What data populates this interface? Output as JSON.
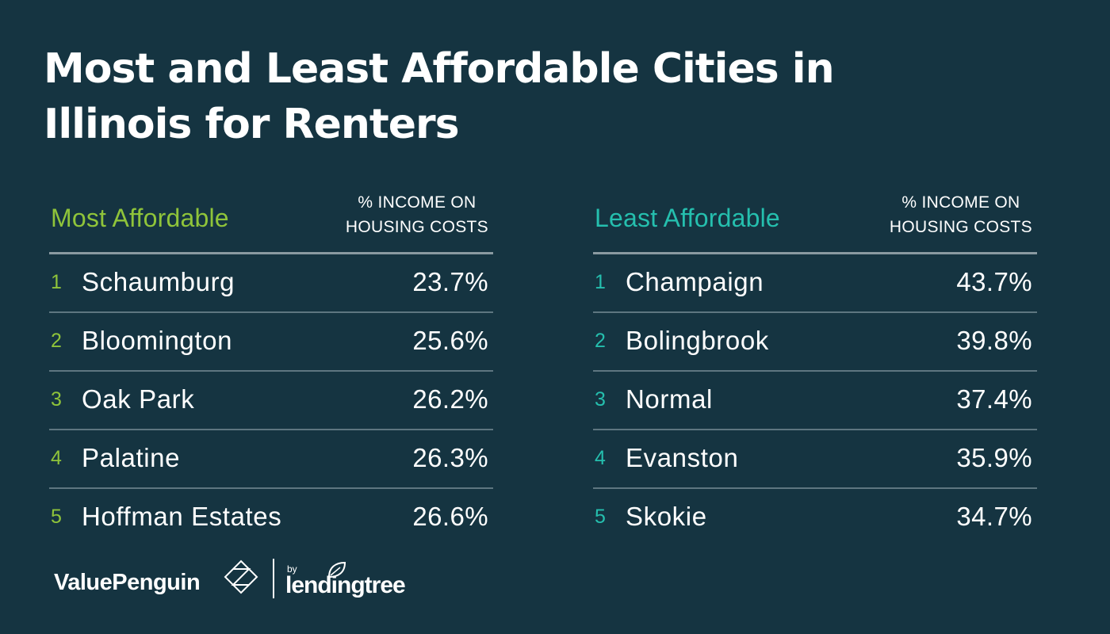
{
  "title": "Most and Least Affordable Cities in Illinois for Renters",
  "chart_data": {
    "type": "table",
    "title": "Most and Least Affordable Cities in Illinois for Renters",
    "tables": [
      {
        "label": "Most Affordable",
        "column_header_line1": "% INCOME ON",
        "column_header_line2": "HOUSING COSTS",
        "color": "#8fc43a",
        "rows": [
          {
            "rank": "1",
            "city": "Schaumburg",
            "value": "23.7%"
          },
          {
            "rank": "2",
            "city": "Bloomington",
            "value": "25.6%"
          },
          {
            "rank": "3",
            "city": "Oak Park",
            "value": "26.2%"
          },
          {
            "rank": "4",
            "city": "Palatine",
            "value": "26.3%"
          },
          {
            "rank": "5",
            "city": "Hoffman Estates",
            "value": "26.6%"
          }
        ]
      },
      {
        "label": "Least Affordable",
        "column_header_line1": "% INCOME ON",
        "column_header_line2": "HOUSING COSTS",
        "color": "#25bfae",
        "rows": [
          {
            "rank": "1",
            "city": "Champaign",
            "value": "43.7%"
          },
          {
            "rank": "2",
            "city": "Bolingbrook",
            "value": "39.8%"
          },
          {
            "rank": "3",
            "city": "Normal",
            "value": "37.4%"
          },
          {
            "rank": "4",
            "city": "Evanston",
            "value": "35.9%"
          },
          {
            "rank": "5",
            "city": "Skokie",
            "value": "34.7%"
          }
        ]
      }
    ]
  },
  "footer": {
    "brand": "ValuePenguin",
    "by": "by",
    "partner": "lendingtree",
    "brand_icon": "valuepenguin-logo-icon",
    "partner_icon": "lendingtree-leaf-icon"
  },
  "colors": {
    "background": "#153441",
    "most_accent": "#8fc43a",
    "least_accent": "#25bfae"
  }
}
